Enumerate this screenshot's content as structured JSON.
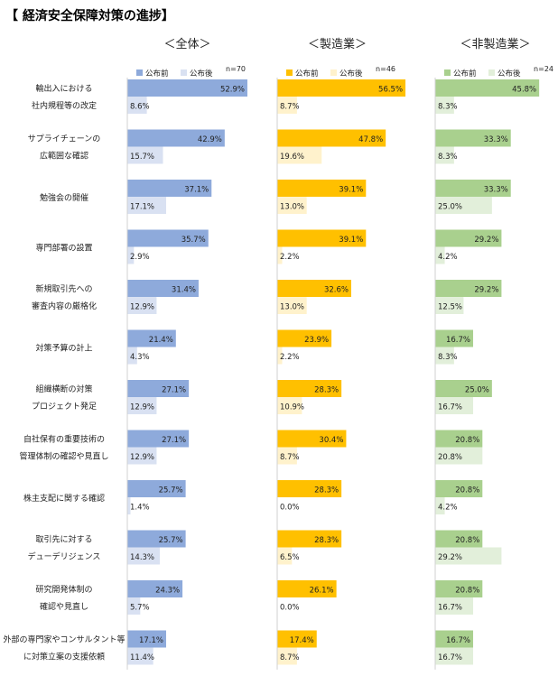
{
  "title": "【 経済安全保障対策の進捗】",
  "legend_before": "公布前",
  "legend_after": "公布後",
  "chart_data": {
    "type": "bar",
    "orientation": "horizontal",
    "unit": "%",
    "categories": [
      [
        "輸出入における",
        "社内規程等の改定"
      ],
      [
        "サプライチェーンの",
        "広範囲な確認"
      ],
      [
        "勉強会の開催"
      ],
      [
        "専門部署の設置"
      ],
      [
        "新規取引先への",
        "審査内容の厳格化"
      ],
      [
        "対策予算の計上"
      ],
      [
        "組織横断の対策",
        "プロジェクト発足"
      ],
      [
        "自社保有の重要技術の",
        "管理体制の確認や見直し"
      ],
      [
        "株主支配に関する確認"
      ],
      [
        "取引先に対する",
        "デューデリジェンス"
      ],
      [
        "研究開発体制の",
        "確認や見直し"
      ],
      [
        "外部の専門家やコンサルタント等",
        "に対策立案の支援依頼"
      ]
    ],
    "panels": [
      {
        "title": "＜全体＞",
        "n": "n=70",
        "colors": {
          "before": "#8eaadb",
          "after": "#d9e1f2"
        },
        "series": [
          {
            "name": "公布前",
            "values": [
              52.9,
              42.9,
              37.1,
              35.7,
              31.4,
              21.4,
              27.1,
              27.1,
              25.7,
              25.7,
              24.3,
              17.1
            ]
          },
          {
            "name": "公布後",
            "values": [
              8.6,
              15.7,
              17.1,
              2.9,
              12.9,
              4.3,
              12.9,
              12.9,
              1.4,
              14.3,
              5.7,
              11.4
            ]
          }
        ]
      },
      {
        "title": "＜製造業＞",
        "n": "n=46",
        "colors": {
          "before": "#ffc000",
          "after": "#fff2cc"
        },
        "series": [
          {
            "name": "公布前",
            "values": [
              56.5,
              47.8,
              39.1,
              39.1,
              32.6,
              23.9,
              28.3,
              30.4,
              28.3,
              28.3,
              26.1,
              17.4
            ]
          },
          {
            "name": "公布後",
            "values": [
              8.7,
              19.6,
              13.0,
              2.2,
              13.0,
              2.2,
              10.9,
              8.7,
              0.0,
              6.5,
              0.0,
              8.7
            ]
          }
        ]
      },
      {
        "title": "＜非製造業＞",
        "n": "n=24",
        "colors": {
          "before": "#a9d08e",
          "after": "#e2efda"
        },
        "series": [
          {
            "name": "公布前",
            "values": [
              45.8,
              33.3,
              33.3,
              29.2,
              29.2,
              16.7,
              25.0,
              20.8,
              20.8,
              20.8,
              20.8,
              16.7
            ]
          },
          {
            "name": "公布後",
            "values": [
              8.3,
              8.3,
              25.0,
              4.2,
              12.5,
              8.3,
              16.7,
              20.8,
              4.2,
              29.2,
              16.7,
              16.7
            ]
          }
        ]
      }
    ]
  }
}
